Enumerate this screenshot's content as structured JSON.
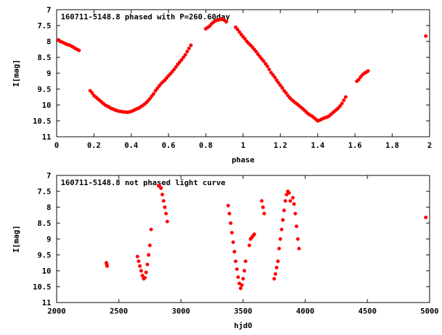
{
  "chart_data": [
    {
      "type": "scatter",
      "title": "160711-5148.8 phased with P=260.60day",
      "xlabel": "phase",
      "ylabel": "I[mag]",
      "xlim": [
        0,
        2
      ],
      "ylim": [
        7,
        11
      ],
      "y_inverted": true,
      "x_ticks": [
        "0",
        "0.2",
        "0.4",
        "0.6",
        "0.8",
        "1",
        "1.2",
        "1.4",
        "1.6",
        "1.8",
        "2"
      ],
      "y_ticks": [
        "7",
        "7.5",
        "8",
        "8.5",
        "9",
        "9.5",
        "10",
        "10.5",
        "11"
      ],
      "point_color": "#ff0000",
      "grid": false,
      "series": [
        {
          "x": [
            0.01,
            0.02,
            0.03,
            0.04,
            0.05,
            0.06,
            0.07,
            0.08,
            0.09,
            0.1,
            0.11,
            0.12,
            0.18,
            0.19,
            0.2,
            0.21,
            0.22,
            0.23,
            0.24,
            0.25,
            0.26,
            0.27,
            0.28,
            0.29,
            0.3,
            0.31,
            0.32,
            0.33,
            0.34,
            0.35,
            0.36,
            0.37,
            0.38,
            0.39,
            0.4,
            0.41,
            0.42,
            0.43,
            0.44,
            0.45,
            0.46,
            0.47,
            0.48,
            0.49,
            0.5,
            0.51,
            0.52,
            0.53,
            0.54,
            0.55,
            0.56,
            0.57,
            0.58,
            0.59,
            0.6,
            0.61,
            0.62,
            0.63,
            0.64,
            0.65,
            0.66,
            0.67,
            0.68,
            0.69,
            0.7,
            0.71,
            0.72,
            0.8,
            0.81,
            0.82,
            0.83,
            0.84,
            0.85,
            0.86,
            0.87,
            0.88,
            0.89,
            0.9,
            0.91,
            0.96,
            0.97,
            0.98,
            0.99,
            1.0,
            1.01,
            1.02,
            1.03,
            1.04,
            1.05,
            1.06,
            1.07,
            1.08,
            1.09,
            1.1,
            1.11,
            1.12,
            1.13,
            1.14,
            1.15,
            1.16,
            1.17,
            1.18,
            1.19,
            1.2,
            1.21,
            1.22,
            1.23,
            1.24,
            1.25,
            1.26,
            1.27,
            1.28,
            1.29,
            1.3,
            1.31,
            1.32,
            1.33,
            1.34,
            1.35,
            1.36,
            1.37,
            1.38,
            1.39,
            1.4,
            1.41,
            1.42,
            1.43,
            1.44,
            1.45,
            1.46,
            1.47,
            1.48,
            1.49,
            1.5,
            1.51,
            1.52,
            1.53,
            1.54,
            1.55,
            1.61,
            1.62,
            1.63,
            1.64,
            1.65,
            1.66,
            1.67,
            1.98
          ],
          "y": [
            7.95,
            8.0,
            8.02,
            8.05,
            8.08,
            8.1,
            8.12,
            8.15,
            8.18,
            8.22,
            8.25,
            8.28,
            9.55,
            9.62,
            9.7,
            9.75,
            9.8,
            9.85,
            9.9,
            9.95,
            10.0,
            10.03,
            10.06,
            10.1,
            10.12,
            10.15,
            10.17,
            10.19,
            10.2,
            10.21,
            10.22,
            10.22,
            10.23,
            10.22,
            10.2,
            10.18,
            10.15,
            10.12,
            10.1,
            10.06,
            10.02,
            9.98,
            9.93,
            9.87,
            9.8,
            9.72,
            9.65,
            9.55,
            9.48,
            9.4,
            9.33,
            9.27,
            9.22,
            9.15,
            9.08,
            9.02,
            8.95,
            8.88,
            8.8,
            8.72,
            8.65,
            8.58,
            8.5,
            8.42,
            8.32,
            8.22,
            8.12,
            7.6,
            7.56,
            7.52,
            7.45,
            7.4,
            7.35,
            7.33,
            7.32,
            7.3,
            7.31,
            7.33,
            7.38,
            7.55,
            7.62,
            7.7,
            7.78,
            7.85,
            7.92,
            8.0,
            8.06,
            8.12,
            8.18,
            8.25,
            8.32,
            8.4,
            8.48,
            8.55,
            8.62,
            8.7,
            8.78,
            8.88,
            8.98,
            9.05,
            9.13,
            9.22,
            9.3,
            9.38,
            9.46,
            9.55,
            9.62,
            9.7,
            9.77,
            9.83,
            9.88,
            9.93,
            9.97,
            10.02,
            10.07,
            10.12,
            10.17,
            10.23,
            10.28,
            10.32,
            10.35,
            10.4,
            10.45,
            10.5,
            10.48,
            10.45,
            10.42,
            10.4,
            10.38,
            10.35,
            10.3,
            10.25,
            10.2,
            10.15,
            10.1,
            10.03,
            9.95,
            9.85,
            9.75,
            9.25,
            9.2,
            9.12,
            9.05,
            9.0,
            8.97,
            8.93,
            7.83
          ]
        }
      ]
    },
    {
      "type": "scatter",
      "title": "160711-5148.8 not phased light curve",
      "xlabel": "hjd0",
      "ylabel": "I[mag]",
      "xlim": [
        2000,
        5000
      ],
      "ylim": [
        7,
        11
      ],
      "y_inverted": true,
      "x_ticks": [
        "2000",
        "2500",
        "3000",
        "3500",
        "4000",
        "4500",
        "5000"
      ],
      "y_ticks": [
        "7",
        "7.5",
        "8",
        "8.5",
        "9",
        "9.5",
        "10",
        "10.5",
        "11"
      ],
      "point_color": "#ff0000",
      "grid": false,
      "series": [
        {
          "x": [
            2400,
            2403,
            2406,
            2650,
            2660,
            2670,
            2680,
            2690,
            2700,
            2710,
            2720,
            2730,
            2740,
            2750,
            2760,
            2820,
            2830,
            2840,
            2850,
            2860,
            2870,
            2880,
            2890,
            3380,
            3390,
            3400,
            3410,
            3420,
            3430,
            3440,
            3450,
            3460,
            3470,
            3480,
            3490,
            3500,
            3510,
            3520,
            3550,
            3560,
            3570,
            3580,
            3590,
            3650,
            3660,
            3670,
            3750,
            3760,
            3770,
            3780,
            3790,
            3800,
            3810,
            3820,
            3830,
            3840,
            3850,
            3860,
            3870,
            3880,
            3900,
            3910,
            3920,
            3930,
            3940,
            3950,
            4970
          ],
          "y": [
            9.75,
            9.8,
            9.85,
            9.55,
            9.7,
            9.85,
            10.0,
            10.15,
            10.25,
            10.22,
            10.05,
            9.8,
            9.5,
            9.2,
            8.7,
            7.32,
            7.35,
            7.4,
            7.6,
            7.8,
            8.0,
            8.2,
            8.45,
            7.95,
            8.2,
            8.5,
            8.8,
            9.1,
            9.4,
            9.7,
            9.95,
            10.2,
            10.4,
            10.55,
            10.45,
            10.25,
            10.0,
            9.7,
            9.2,
            9.0,
            8.95,
            8.9,
            8.85,
            7.8,
            8.0,
            8.2,
            10.25,
            10.1,
            9.9,
            9.7,
            9.3,
            9.0,
            8.7,
            8.4,
            8.1,
            7.8,
            7.6,
            7.5,
            7.55,
            7.8,
            7.7,
            7.9,
            8.2,
            8.6,
            9.0,
            9.3,
            8.32
          ]
        }
      ]
    }
  ]
}
